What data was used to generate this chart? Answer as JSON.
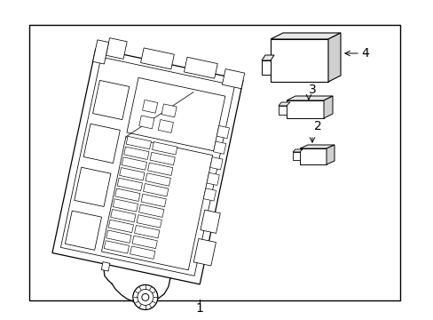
{
  "bg_color": "#ffffff",
  "line_color": "#000000",
  "label_1": "1",
  "label_2": "2",
  "label_3": "3",
  "label_4": "4",
  "font_size": 10,
  "lw_main": 0.9,
  "lw_thin": 0.55
}
